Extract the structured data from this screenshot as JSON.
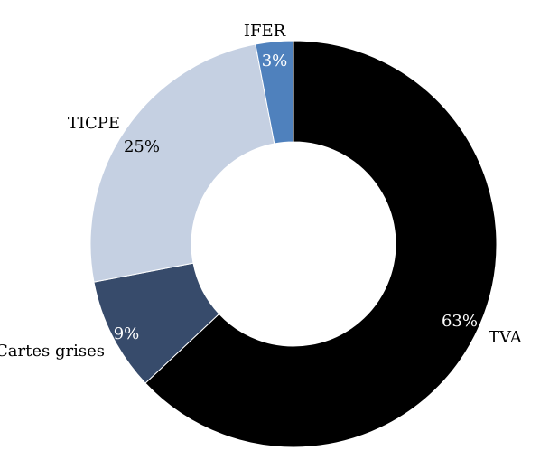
{
  "chart_data": {
    "type": "pie",
    "variant": "donut",
    "start_angle_deg": 0,
    "direction": "clockwise",
    "series": [
      {
        "slices": [
          {
            "label": "TVA",
            "value": 63,
            "value_label": "63%",
            "color": "#000000",
            "value_label_color": "#ffffff"
          },
          {
            "label": "Cartes grises",
            "value": 9,
            "value_label": "9%",
            "color": "#374b6b",
            "value_label_color": "#ffffff"
          },
          {
            "label": "TICPE",
            "value": 25,
            "value_label": "25%",
            "color": "#c5d0e2",
            "value_label_color": "#000000"
          },
          {
            "label": "IFER",
            "value": 3,
            "value_label": "3%",
            "color": "#4f81bd",
            "value_label_color": "#ffffff"
          }
        ]
      }
    ],
    "legend": "none",
    "background": "#ffffff"
  }
}
